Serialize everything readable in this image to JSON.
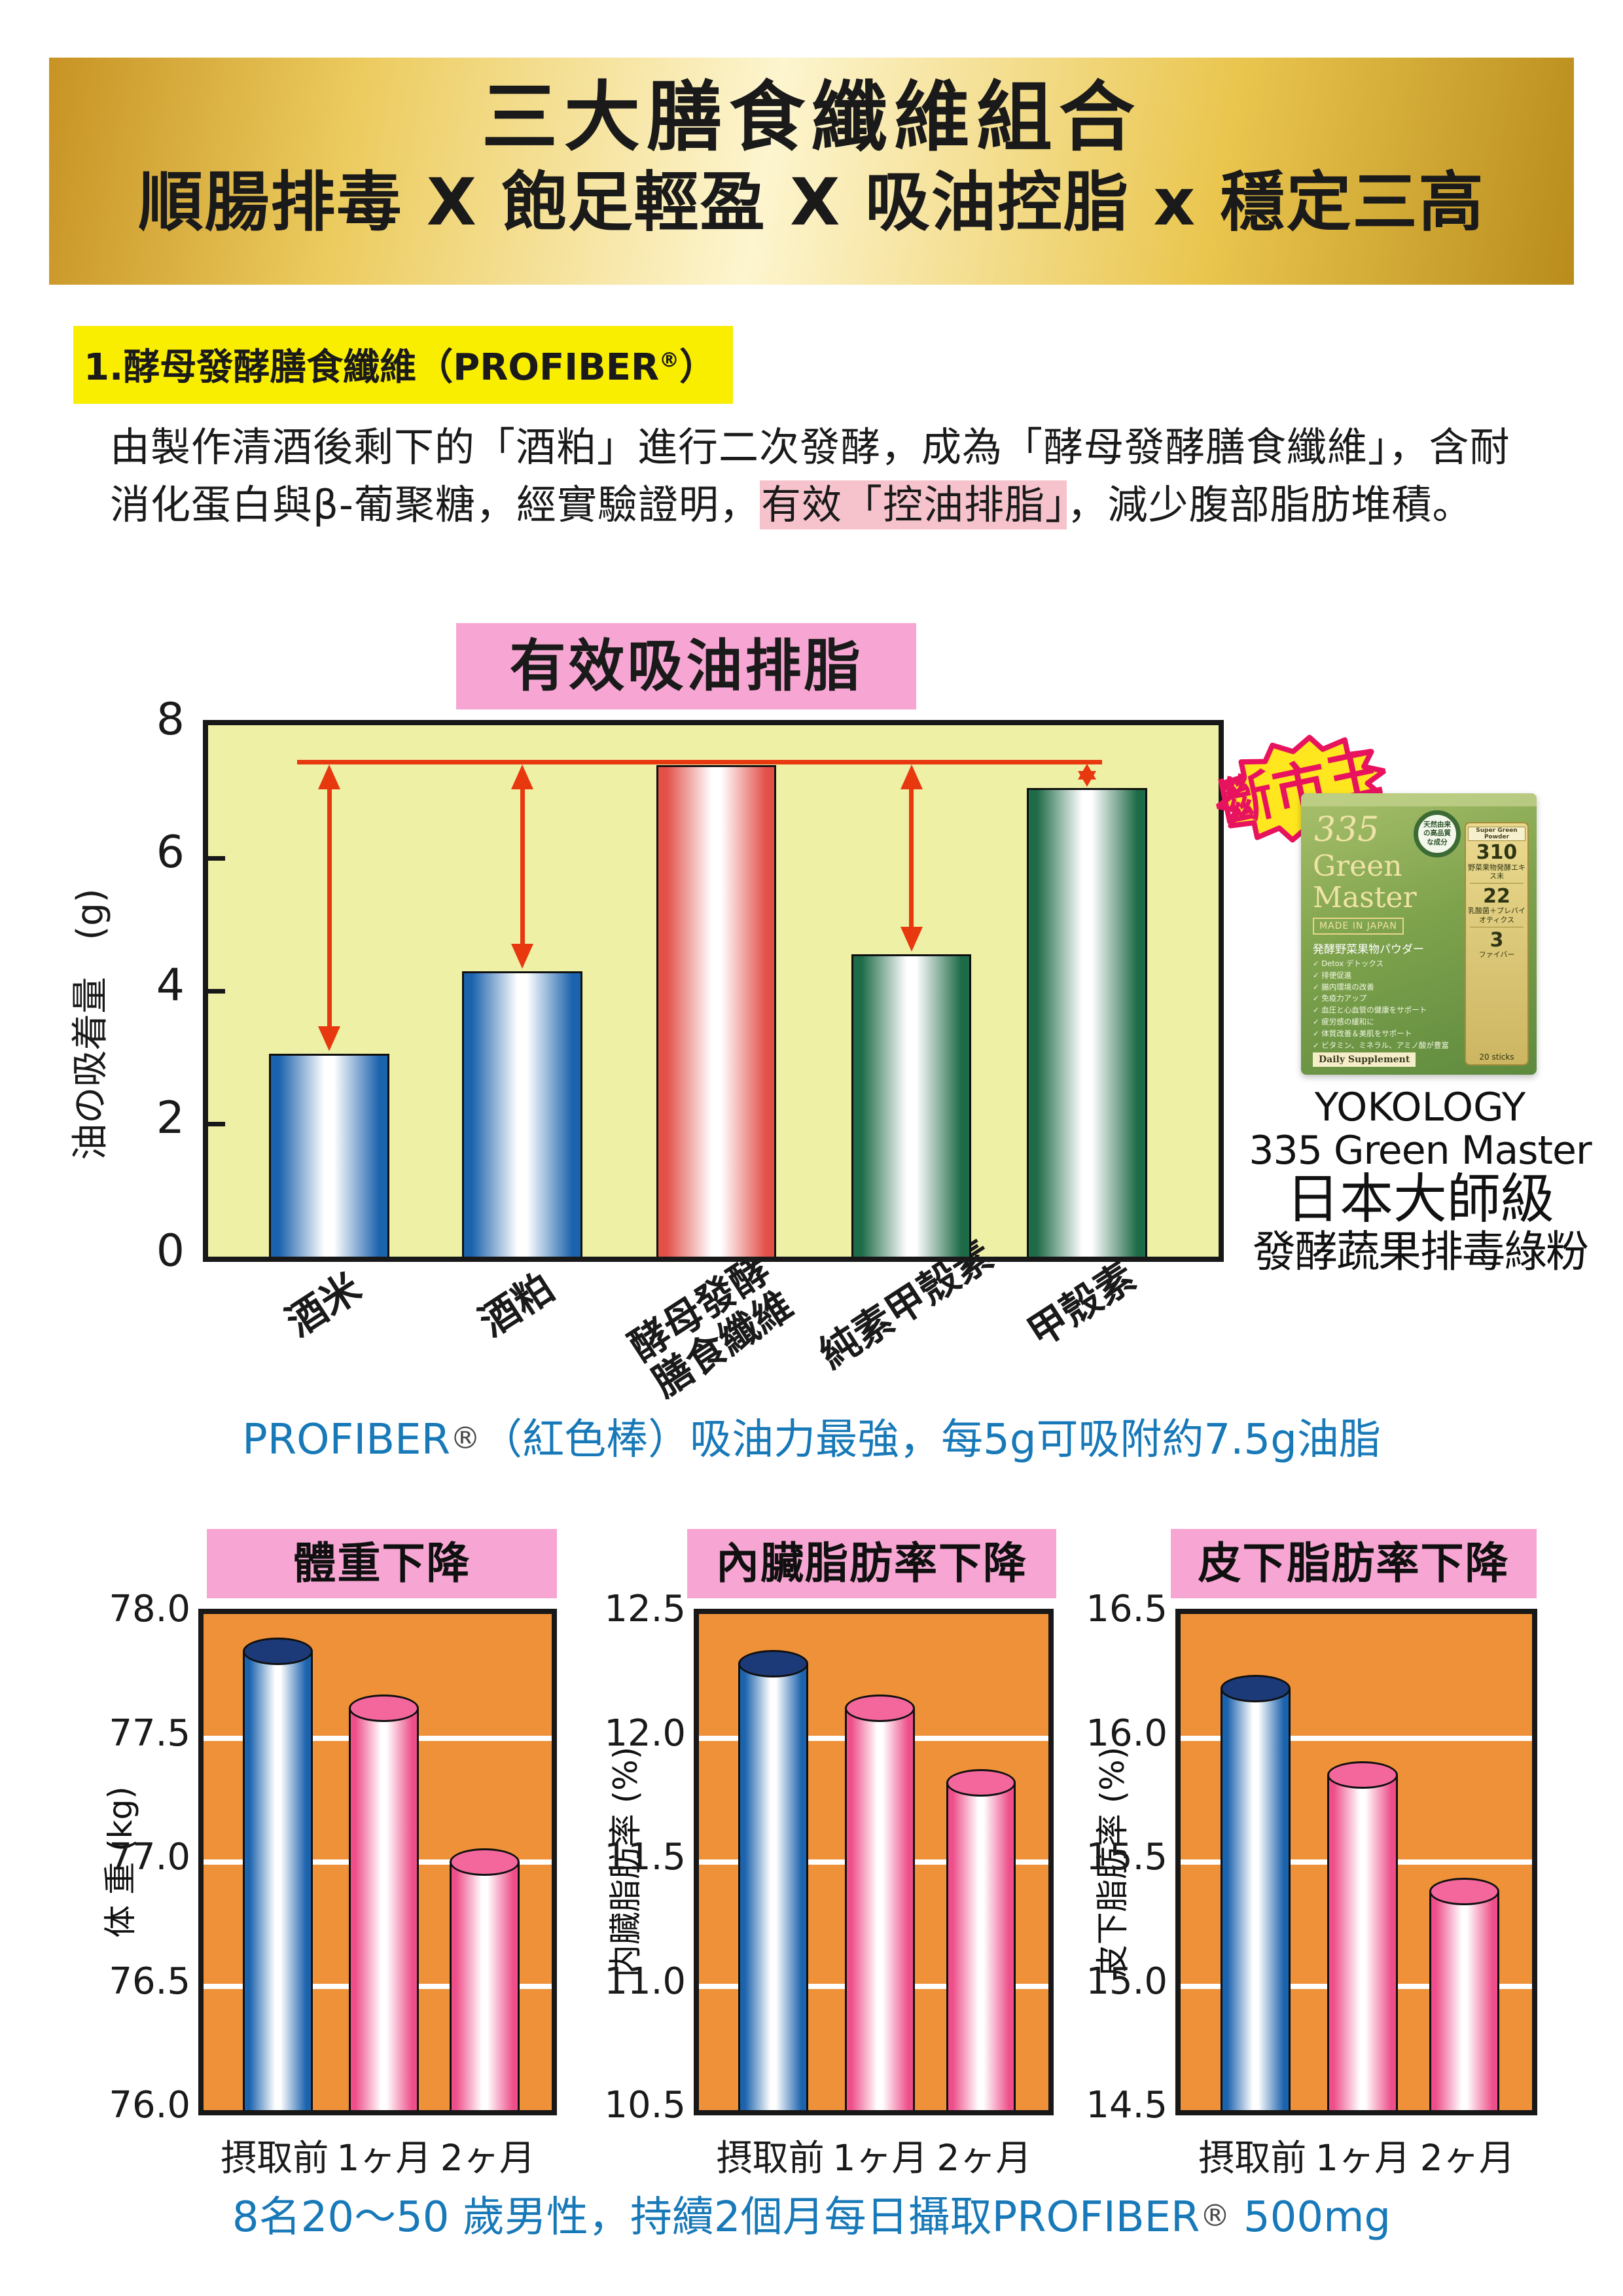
{
  "header": {
    "line1": "三大膳食纖維組合",
    "line2": "順腸排毒 X 飽足輕盈 X 吸油控脂 x 穩定三高"
  },
  "section1": {
    "title_prefix": "1.酵母發酵膳食纖維（PROFIBER",
    "reg": "®",
    "title_suffix": "）"
  },
  "paragraph": {
    "before": "由製作清酒後剩下的「酒粕」進行二次發酵，成為「酵母發酵膳食纖維」，含耐消化蛋白與β-葡聚糖，經實驗證明，",
    "highlight": "有效「控油排脂」",
    "after": "，減少腹部脂肪堆積。"
  },
  "chart_data": [
    {
      "type": "bar",
      "title": "有效吸油排脂",
      "ylabel": "油の吸着量　(g)",
      "ylim": [
        0,
        8
      ],
      "yticks": [
        0,
        2,
        4,
        6,
        8
      ],
      "categories": [
        "酒米",
        "酒粕",
        "酵母發酵\n膳食纖維",
        "純素甲殼素",
        "甲殼素"
      ],
      "values": [
        3.05,
        4.3,
        7.4,
        4.55,
        7.05
      ],
      "bar_colors": [
        "blue",
        "blue",
        "red",
        "green",
        "green"
      ],
      "refline": 7.45,
      "arrow_bars": [
        0,
        1,
        3,
        4
      ],
      "grid": false,
      "legend": "none"
    },
    {
      "type": "bar",
      "title": "體重下降",
      "ylabel": "体 重 (kg)",
      "ylim": [
        76.0,
        78.0
      ],
      "yticks": [
        76.0,
        76.5,
        77.0,
        77.5,
        78.0
      ],
      "categories": [
        "摂取前",
        "1ヶ月",
        "2ヶ月"
      ],
      "values": [
        77.85,
        77.62,
        77.0
      ],
      "bar_colors": [
        "blue",
        "pink",
        "pink"
      ],
      "grid": true,
      "legend": "none"
    },
    {
      "type": "bar",
      "title": "內臟脂肪率下降",
      "ylabel": "内臓脂肪率 (%)",
      "ylim": [
        10.5,
        12.5
      ],
      "yticks": [
        10.5,
        11.0,
        11.5,
        12.0,
        12.5
      ],
      "categories": [
        "摂取前",
        "1ヶ月",
        "2ヶ月"
      ],
      "values": [
        12.3,
        12.12,
        11.82
      ],
      "bar_colors": [
        "blue",
        "pink",
        "pink"
      ],
      "grid": true,
      "legend": "none"
    },
    {
      "type": "bar",
      "title": "皮下脂肪率下降",
      "ylabel": "皮下脂肪率 (%)",
      "ylim": [
        14.5,
        16.5
      ],
      "yticks": [
        14.5,
        15.0,
        15.5,
        16.0,
        16.5
      ],
      "categories": [
        "摂取前",
        "1ヶ月",
        "2ヶ月"
      ],
      "values": [
        16.2,
        15.85,
        15.38
      ],
      "bar_colors": [
        "blue",
        "pink",
        "pink"
      ],
      "grid": true,
      "legend": "none"
    }
  ],
  "caption1": {
    "before": "PROFIBER",
    "reg": "®",
    "after": "（紅色棒）吸油力最強，每5g可吸附約7.5g油脂"
  },
  "footer": {
    "before": "8名20～50 歲男性，持續2個月每日攝取PROFIBER",
    "reg": "®",
    "after": " 500mg"
  },
  "product": {
    "badge": "斷市王",
    "box": {
      "num": "335",
      "name1": "Green",
      "name2": "Master",
      "made_in": "MADE IN JAPAN",
      "subtitle": "発酵野菜果物パウダー",
      "features": [
        "✓ Detox デトックス",
        "✓ 排便促進",
        "✓ 腸内環境の改善",
        "✓ 免疫力アップ",
        "✓ 血圧と心血管の健康をサポート",
        "✓ 疲労感の緩和に",
        "✓ 体質改善＆美肌をサポート",
        "✓ ビタミン、ミネラル、アミノ酸が豊富"
      ],
      "daily": "Daily Supplement",
      "natural_badge": "天然由来の高品質な成分",
      "stick_label": "Super Green Powder",
      "stick_n1": "310",
      "stick_t1": "野菜果物発酵エキス末",
      "stick_n2": "22",
      "stick_t2": "乳酸菌＋プレバイオティクス",
      "stick_n3": "3",
      "stick_t3": "ファイバー",
      "sticks": "20 sticks"
    },
    "caption_lines": [
      "YOKOLOGY",
      "335 Green Master",
      "日本大師級",
      "發酵蔬果排毒綠粉"
    ]
  },
  "colors": {
    "blue_bar": "#1c63ad",
    "red_bar": "#e25048",
    "green_bar": "#1e6b48",
    "pink_bar": "#ee4f8a",
    "navy_cap": "#1c3a78",
    "pink_cap": "#f4679d",
    "red_line": "#e8380f",
    "blue_text": "#1879b8",
    "chart_bg": "#eef0a6",
    "orange_bg": "#ef9138",
    "pink_box": "#f7a6d3",
    "yellow_highlight": "#f9ed00",
    "pink_highlight": "#f6c3cd",
    "badge_yellow": "#ffe71f",
    "badge_crimson": "#e8135e"
  }
}
